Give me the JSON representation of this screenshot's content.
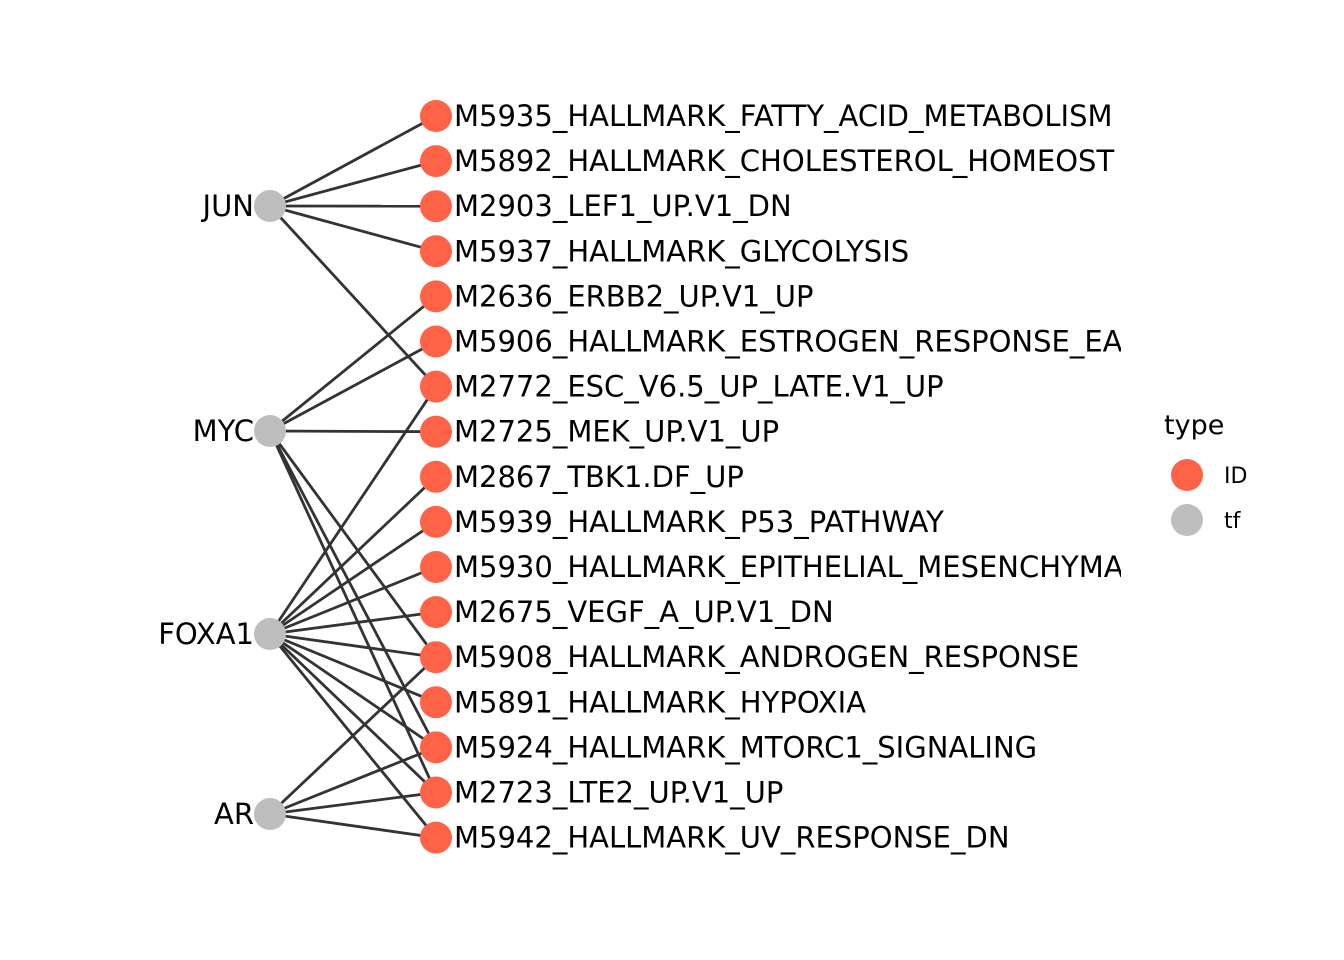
{
  "colors": {
    "ID": "#ff6347",
    "tf": "#bebebe",
    "edge": "#333333"
  },
  "tf_nodes": [
    {
      "id": "JUN",
      "label": "JUN"
    },
    {
      "id": "MYC",
      "label": "MYC"
    },
    {
      "id": "FOXA1",
      "label": "FOXA1"
    },
    {
      "id": "AR",
      "label": "AR"
    }
  ],
  "id_nodes": [
    {
      "id": "M5935",
      "label": "M5935_HALLMARK_FATTY_ACID_METABOLISM"
    },
    {
      "id": "M5892",
      "label": "M5892_HALLMARK_CHOLESTEROL_HOMEOST"
    },
    {
      "id": "M2903",
      "label": "M2903_LEF1_UP.V1_DN"
    },
    {
      "id": "M5937",
      "label": "M5937_HALLMARK_GLYCOLYSIS"
    },
    {
      "id": "M2636",
      "label": "M2636_ERBB2_UP.V1_UP"
    },
    {
      "id": "M5906",
      "label": "M5906_HALLMARK_ESTROGEN_RESPONSE_EA"
    },
    {
      "id": "M2772",
      "label": "M2772_ESC_V6.5_UP_LATE.V1_UP"
    },
    {
      "id": "M2725",
      "label": "M2725_MEK_UP.V1_UP"
    },
    {
      "id": "M2867",
      "label": "M2867_TBK1.DF_UP"
    },
    {
      "id": "M5939",
      "label": "M5939_HALLMARK_P53_PATHWAY"
    },
    {
      "id": "M5930",
      "label": "M5930_HALLMARK_EPITHELIAL_MESENCHYMA"
    },
    {
      "id": "M2675",
      "label": "M2675_VEGF_A_UP.V1_DN"
    },
    {
      "id": "M5908",
      "label": "M5908_HALLMARK_ANDROGEN_RESPONSE"
    },
    {
      "id": "M5891",
      "label": "M5891_HALLMARK_HYPOXIA"
    },
    {
      "id": "M5924",
      "label": "M5924_HALLMARK_MTORC1_SIGNALING"
    },
    {
      "id": "M2723",
      "label": "M2723_LTE2_UP.V1_UP"
    },
    {
      "id": "M5942",
      "label": "M5942_HALLMARK_UV_RESPONSE_DN"
    }
  ],
  "edges": [
    [
      "JUN",
      "M5935"
    ],
    [
      "JUN",
      "M5892"
    ],
    [
      "JUN",
      "M2903"
    ],
    [
      "JUN",
      "M5937"
    ],
    [
      "JUN",
      "M2772"
    ],
    [
      "MYC",
      "M2636"
    ],
    [
      "MYC",
      "M5906"
    ],
    [
      "MYC",
      "M2725"
    ],
    [
      "MYC",
      "M5908"
    ],
    [
      "MYC",
      "M5924"
    ],
    [
      "MYC",
      "M2723"
    ],
    [
      "FOXA1",
      "M2772"
    ],
    [
      "FOXA1",
      "M2867"
    ],
    [
      "FOXA1",
      "M5939"
    ],
    [
      "FOXA1",
      "M5930"
    ],
    [
      "FOXA1",
      "M2675"
    ],
    [
      "FOXA1",
      "M5908"
    ],
    [
      "FOXA1",
      "M5891"
    ],
    [
      "FOXA1",
      "M5924"
    ],
    [
      "FOXA1",
      "M2723"
    ],
    [
      "FOXA1",
      "M5942"
    ],
    [
      "AR",
      "M5908"
    ],
    [
      "AR",
      "M5924"
    ],
    [
      "AR",
      "M2723"
    ],
    [
      "AR",
      "M5942"
    ]
  ],
  "legend": {
    "title": "type",
    "items": [
      {
        "key": "ID",
        "label": "ID"
      },
      {
        "key": "tf",
        "label": "tf"
      }
    ]
  }
}
